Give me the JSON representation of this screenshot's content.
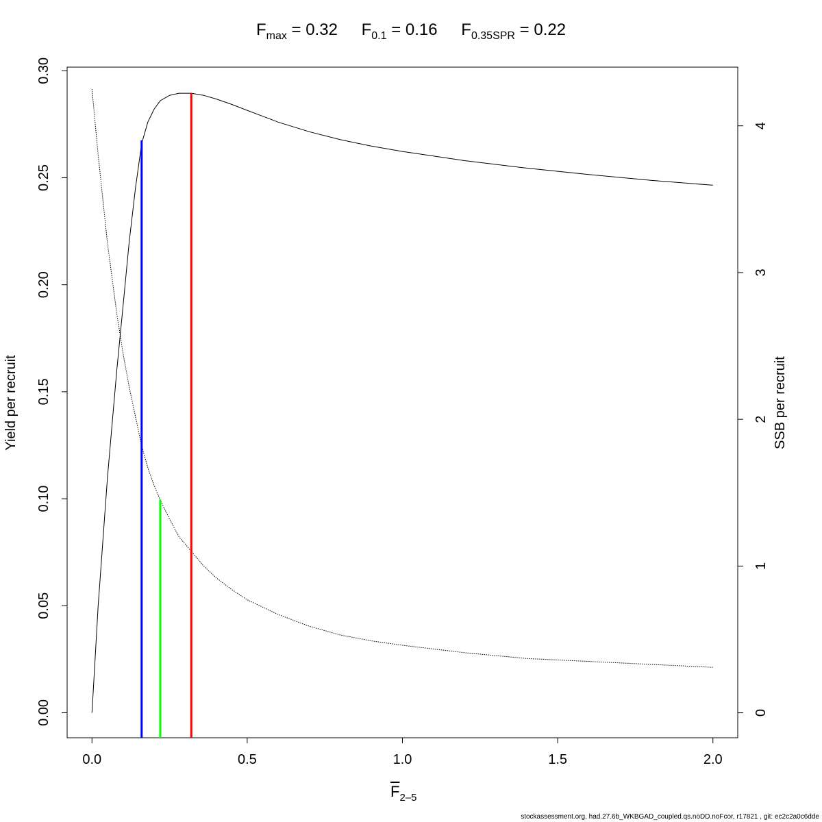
{
  "title": {
    "fmax": {
      "symbol": "F",
      "sub": "max",
      "value": "= 0.32"
    },
    "f01": {
      "symbol": "F",
      "sub": "0.1",
      "value": "= 0.16"
    },
    "fspr": {
      "symbol": "F",
      "sub": "0.35SPR",
      "value": "= 0.22"
    }
  },
  "footer": "stockassessment.org, had.27.6b_WKBGAD_coupled.qs.noDD.noFcor, r17821 , git: ec2c2a0c6dde",
  "chart_data": {
    "type": "line",
    "xlabel": {
      "symbol": "F",
      "sub": "2–5"
    },
    "ylabel": "Yield per recruit",
    "y2label": "SSB per recruit",
    "xlim": [
      -0.08,
      2.08
    ],
    "ylim": [
      -0.0117,
      0.3017
    ],
    "y2lim": [
      -0.17,
      4.4
    ],
    "x_ticks": [
      "0.0",
      "0.5",
      "1.0",
      "1.5",
      "2.0"
    ],
    "x_tick_values": [
      0,
      0.5,
      1.0,
      1.5,
      2.0
    ],
    "y_ticks": [
      "0.00",
      "0.05",
      "0.10",
      "0.15",
      "0.20",
      "0.25",
      "0.30"
    ],
    "y_tick_values": [
      0,
      0.05,
      0.1,
      0.15,
      0.2,
      0.25,
      0.3
    ],
    "y2_ticks": [
      "0",
      "1",
      "2",
      "3",
      "4"
    ],
    "y2_tick_values": [
      0,
      1,
      2,
      3,
      4
    ],
    "series": [
      {
        "style": "solid",
        "axis": "left",
        "color": "#000000",
        "x": [
          0.0,
          0.02,
          0.05,
          0.08,
          0.1,
          0.12,
          0.14,
          0.16,
          0.18,
          0.2,
          0.22,
          0.25,
          0.28,
          0.32,
          0.36,
          0.4,
          0.45,
          0.5,
          0.6,
          0.7,
          0.8,
          0.9,
          1.0,
          1.2,
          1.4,
          1.6,
          1.8,
          2.0
        ],
        "y": [
          0.0,
          0.05,
          0.11,
          0.16,
          0.19,
          0.22,
          0.245,
          0.266,
          0.276,
          0.282,
          0.286,
          0.2885,
          0.2895,
          0.2895,
          0.2885,
          0.2868,
          0.2843,
          0.2815,
          0.276,
          0.2715,
          0.2678,
          0.2648,
          0.2623,
          0.258,
          0.2545,
          0.2515,
          0.2488,
          0.2465
        ]
      },
      {
        "style": "dotted",
        "axis": "right",
        "color": "#000000",
        "x": [
          0.0,
          0.02,
          0.05,
          0.08,
          0.1,
          0.12,
          0.14,
          0.16,
          0.18,
          0.2,
          0.22,
          0.25,
          0.28,
          0.32,
          0.36,
          0.4,
          0.45,
          0.5,
          0.6,
          0.7,
          0.8,
          0.9,
          1.0,
          1.2,
          1.4,
          1.6,
          1.8,
          2.0
        ],
        "y": [
          4.25,
          3.8,
          3.2,
          2.72,
          2.45,
          2.22,
          2.02,
          1.82,
          1.67,
          1.55,
          1.45,
          1.32,
          1.2,
          1.1,
          1.0,
          0.92,
          0.84,
          0.77,
          0.67,
          0.59,
          0.53,
          0.49,
          0.46,
          0.41,
          0.37,
          0.35,
          0.33,
          0.31
        ]
      }
    ],
    "reference_lines": [
      {
        "name": "F0.1",
        "x": 0.16,
        "y_top": 0.2675,
        "color": "#0000ff"
      },
      {
        "name": "F0.35SPR",
        "x": 0.22,
        "y_top": 0.0995,
        "color": "#00ff00"
      },
      {
        "name": "Fmax",
        "x": 0.32,
        "y_top": 0.2895,
        "color": "#ff0000"
      }
    ],
    "legend": "none",
    "grid": false
  }
}
